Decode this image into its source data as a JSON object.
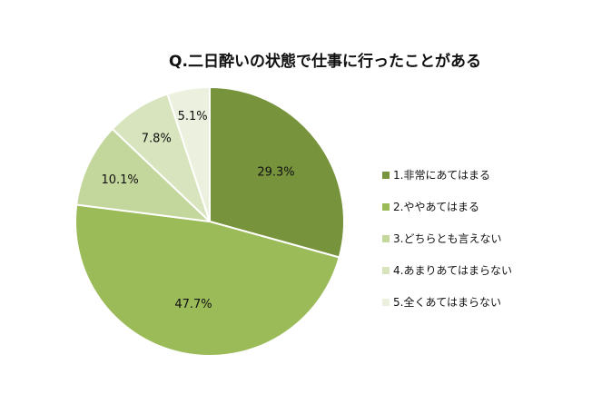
{
  "chart_data": {
    "type": "pie",
    "title": "Q.二日酔いの状態で仕事に行ったことがある",
    "categories": [
      "1.非常にあてはまる",
      "2.ややあてはまる",
      "3.どちらとも言えない",
      "4.あまりあてはまらない",
      "5.全くあてはまらない"
    ],
    "values": [
      29.3,
      47.7,
      10.1,
      7.8,
      5.1
    ],
    "value_labels": [
      "29.3%",
      "47.7%",
      "10.1%",
      "7.8%",
      "5.1%"
    ],
    "colors": [
      "#77933c",
      "#9bbb59",
      "#c3d69b",
      "#d7e4bd",
      "#ebf1de"
    ],
    "legend_position": "right",
    "start_angle": "top, clockwise"
  }
}
